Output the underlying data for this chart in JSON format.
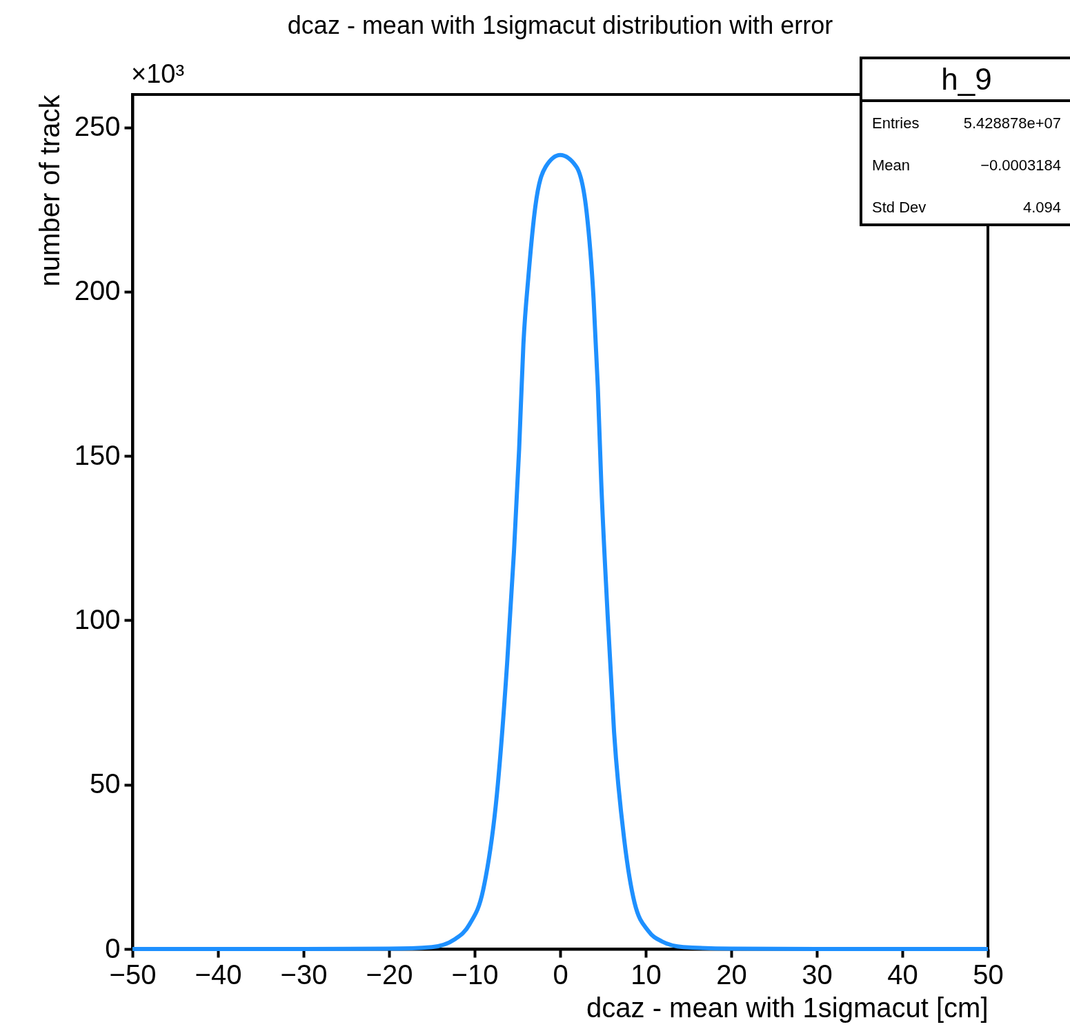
{
  "chart_data": {
    "type": "line",
    "title": "dcaz - mean with 1sigmacut distribution with error",
    "xlabel": "dcaz - mean with 1sigmacut [cm]",
    "ylabel": "number of track",
    "x": [
      -50,
      -30,
      -20,
      -15,
      -12.3,
      -10.6,
      -9.0,
      -7.4,
      -6.2,
      -5.4,
      -4.8,
      -4.3,
      -3.7,
      -2.9,
      -1.7,
      0,
      1.9,
      3.1,
      3.9,
      4.4,
      4.8,
      5.5,
      6.3,
      7.5,
      8.7,
      10.3,
      11.9,
      14.4,
      20,
      30,
      50
    ],
    "values": [
      0,
      0,
      0.1,
      0.6,
      3,
      7.5,
      18,
      47,
      87,
      121,
      152,
      184,
      205,
      226,
      238,
      241.6,
      238,
      224,
      198,
      171,
      142,
      104,
      66,
      33,
      14,
      5.5,
      2.3,
      0.6,
      0.1,
      0,
      0
    ],
    "color": "#1e90ff",
    "xlim": [
      -50,
      50
    ],
    "xticks": [
      {
        "value": -50,
        "label": "−50"
      },
      {
        "value": -40,
        "label": "−40"
      },
      {
        "value": -30,
        "label": "−30"
      },
      {
        "value": -20,
        "label": "−20"
      },
      {
        "value": -10,
        "label": "−10"
      },
      0,
      10,
      20,
      30,
      40,
      50
    ],
    "ylim": [
      0,
      260
    ],
    "yticks": [
      0,
      50,
      100,
      150,
      200,
      250
    ],
    "grid": false,
    "annotations": [
      "×10³",
      "h_9",
      "Entries",
      "5.428878e+07",
      "Mean",
      "−0.0003184",
      "Std Dev",
      "4.094"
    ]
  }
}
